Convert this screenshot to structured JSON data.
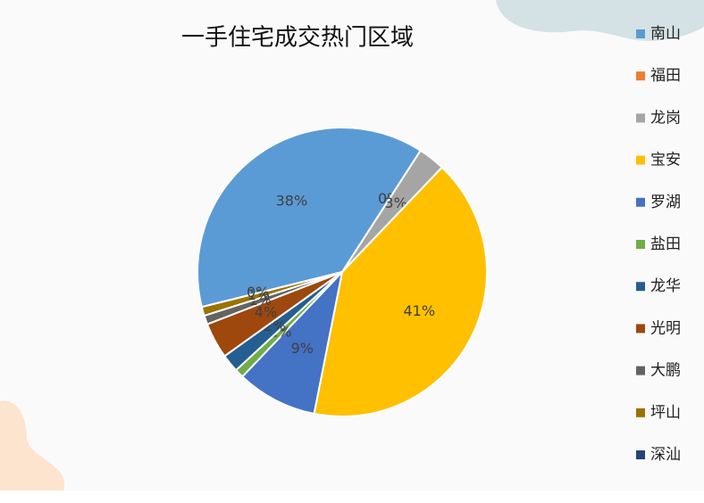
{
  "chart_data": {
    "type": "pie",
    "title": "一手住宅成交热门区域",
    "categories": [
      "南山",
      "福田",
      "龙岗",
      "宝安",
      "罗湖",
      "盐田",
      "龙华",
      "光明",
      "大鹏",
      "坪山",
      "深汕"
    ],
    "values": [
      38,
      0,
      3,
      41,
      9,
      1,
      2,
      4,
      1,
      1,
      0
    ],
    "value_labels": [
      "38%",
      "0%",
      "3%",
      "41%",
      "9%",
      "1%",
      "2%",
      "4%",
      "1%",
      "1%",
      "0%"
    ],
    "colors": [
      "#5b9bd5",
      "#ed7d31",
      "#a5a5a5",
      "#ffc000",
      "#4472c4",
      "#70ad47",
      "#255e91",
      "#9e480e",
      "#636363",
      "#997300",
      "#264478"
    ],
    "legend": "right"
  }
}
